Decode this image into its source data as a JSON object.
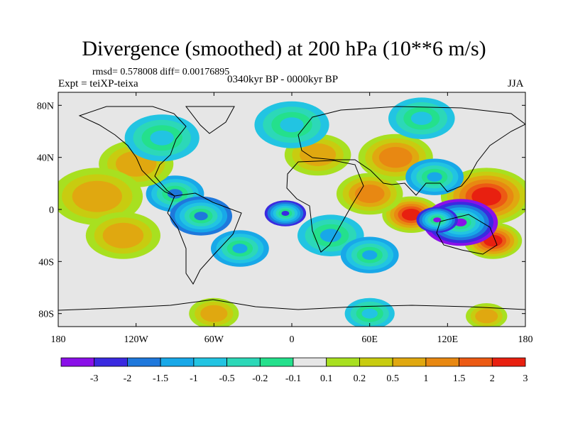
{
  "chart_data": {
    "type": "heatmap",
    "title": "Divergence (smoothed) at 200 hPa (10**6 m/s)",
    "stats_text": "rmsd= 0.578008 diff= 0.00176895",
    "experiment_text": "Expt = teiXP-teixa",
    "period_text": "0340kyr BP - 0000kyr BP",
    "season": "JJA",
    "x_axis": {
      "min": -180,
      "max": 180,
      "ticks": [
        {
          "value": -180,
          "label": "180"
        },
        {
          "value": -120,
          "label": "120W"
        },
        {
          "value": -60,
          "label": "60W"
        },
        {
          "value": 0,
          "label": "0"
        },
        {
          "value": 60,
          "label": "60E"
        },
        {
          "value": 120,
          "label": "120E"
        },
        {
          "value": 180,
          "label": "180"
        }
      ]
    },
    "y_axis": {
      "min": -90,
      "max": 90,
      "ticks": [
        {
          "value": 80,
          "label": "80N"
        },
        {
          "value": 40,
          "label": "40N"
        },
        {
          "value": 0,
          "label": "0"
        },
        {
          "value": -40,
          "label": "40S"
        },
        {
          "value": -80,
          "label": "80S"
        }
      ]
    },
    "colorbar": {
      "levels": [
        "-3",
        "-2",
        "-1.5",
        "-1",
        "-0.5",
        "-0.2",
        "-0.1",
        "0.1",
        "0.2",
        "0.5",
        "1",
        "1.5",
        "2",
        "3"
      ],
      "colors": [
        "#8a10e8",
        "#3a2ae0",
        "#1e78dc",
        "#18a8e8",
        "#22c4e2",
        "#2cd8b8",
        "#24e08c",
        "#e6e6e6",
        "#a8e020",
        "#c8cc10",
        "#e0a810",
        "#e88812",
        "#ec5a14",
        "#e82010"
      ]
    },
    "anomalies": [
      {
        "lon": 92,
        "lat": -4,
        "value": 3.0,
        "r": 14
      },
      {
        "lon": 150,
        "lat": 10,
        "value": 2.2,
        "r": 22
      },
      {
        "lon": 155,
        "lat": -24,
        "value": 2.6,
        "r": 14
      },
      {
        "lon": 130,
        "lat": -10,
        "value": -3.2,
        "r": 18
      },
      {
        "lon": 112,
        "lat": -8,
        "value": -3.0,
        "r": 10
      },
      {
        "lon": -5,
        "lat": -3,
        "value": -2.3,
        "r": 10
      },
      {
        "lon": -90,
        "lat": 12,
        "value": -1.5,
        "r": 14
      },
      {
        "lon": -70,
        "lat": -5,
        "value": -1.6,
        "r": 15
      },
      {
        "lon": -40,
        "lat": -30,
        "value": -1.2,
        "r": 14
      },
      {
        "lon": 30,
        "lat": -20,
        "value": -1.0,
        "r": 16
      },
      {
        "lon": 60,
        "lat": 12,
        "value": 1.1,
        "r": 16
      },
      {
        "lon": 80,
        "lat": 40,
        "value": 1.2,
        "r": 18
      },
      {
        "lon": 20,
        "lat": 42,
        "value": 0.8,
        "r": 16
      },
      {
        "lon": -120,
        "lat": 35,
        "value": 0.8,
        "r": 18
      },
      {
        "lon": -150,
        "lat": 10,
        "value": 0.7,
        "r": 22
      },
      {
        "lon": -130,
        "lat": -20,
        "value": 0.9,
        "r": 18
      },
      {
        "lon": -100,
        "lat": 55,
        "value": -0.8,
        "r": 18
      },
      {
        "lon": 0,
        "lat": 65,
        "value": -0.6,
        "r": 18
      },
      {
        "lon": 100,
        "lat": 70,
        "value": -0.6,
        "r": 16
      },
      {
        "lon": -60,
        "lat": -80,
        "value": 0.7,
        "r": 12
      },
      {
        "lon": 60,
        "lat": -80,
        "value": -0.6,
        "r": 12
      },
      {
        "lon": 150,
        "lat": -82,
        "value": 0.6,
        "r": 10
      },
      {
        "lon": 60,
        "lat": -35,
        "value": -1.2,
        "r": 14
      },
      {
        "lon": 110,
        "lat": 25,
        "value": -1.2,
        "r": 14
      }
    ]
  }
}
